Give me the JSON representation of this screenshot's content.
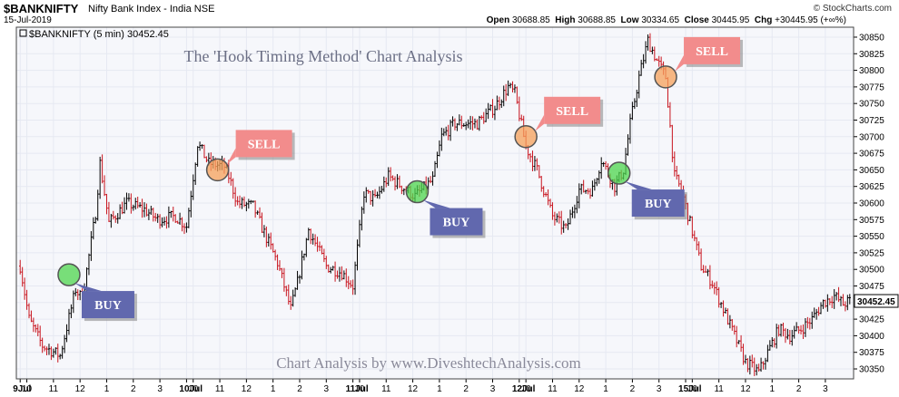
{
  "header": {
    "symbol": "$BANKNIFTY",
    "name": "Nifty Bank Index - India",
    "exchange": "NSE",
    "date": "15-Jul-2019",
    "brand": "© StockCharts.com",
    "open_label": "Open",
    "open": "30688.85",
    "high_label": "High",
    "high": "30688.85",
    "low_label": "Low",
    "low": "30334.65",
    "close_label": "Close",
    "close": "30445.95",
    "chg_label": "Chg",
    "chg": "+30445.95 (+∞%)"
  },
  "chart_data": {
    "type": "ohlc",
    "legend": "$BANKNIFTY (5 min) 30452.45",
    "title": "The 'Hook Timing Method' Chart Analysis",
    "watermark": "Chart Analysis by www.DiveshtechAnalysis.com",
    "ylim": [
      30335,
      30865
    ],
    "y_ticks": [
      30350,
      30375,
      30400,
      30425,
      30450,
      30475,
      30500,
      30525,
      30550,
      30575,
      30600,
      30625,
      30650,
      30675,
      30700,
      30725,
      30750,
      30775,
      30800,
      30825,
      30850
    ],
    "last_price": "30452.45",
    "x_ticks": [
      {
        "label": "9Jul",
        "bar": 0,
        "bold": true
      },
      {
        "label": "10",
        "bar": 3
      },
      {
        "label": "11",
        "bar": 15
      },
      {
        "label": "12",
        "bar": 27
      },
      {
        "label": "1",
        "bar": 39
      },
      {
        "label": "2",
        "bar": 51
      },
      {
        "label": "3",
        "bar": 63
      },
      {
        "label": "10Jul",
        "bar": 75,
        "bold": true
      },
      {
        "label": "10",
        "bar": 78
      },
      {
        "label": "11",
        "bar": 90
      },
      {
        "label": "12",
        "bar": 102
      },
      {
        "label": "1",
        "bar": 114
      },
      {
        "label": "2",
        "bar": 126
      },
      {
        "label": "3",
        "bar": 138
      },
      {
        "label": "11Jul",
        "bar": 150,
        "bold": true
      },
      {
        "label": "10",
        "bar": 153
      },
      {
        "label": "11",
        "bar": 165
      },
      {
        "label": "12",
        "bar": 177
      },
      {
        "label": "1",
        "bar": 189
      },
      {
        "label": "2",
        "bar": 201
      },
      {
        "label": "3",
        "bar": 213
      },
      {
        "label": "12Jul",
        "bar": 225,
        "bold": true
      },
      {
        "label": "10",
        "bar": 228
      },
      {
        "label": "11",
        "bar": 240
      },
      {
        "label": "12",
        "bar": 252
      },
      {
        "label": "1",
        "bar": 264
      },
      {
        "label": "2",
        "bar": 276
      },
      {
        "label": "3",
        "bar": 288
      },
      {
        "label": "15Jul",
        "bar": 300,
        "bold": true
      },
      {
        "label": "10",
        "bar": 303
      },
      {
        "label": "11",
        "bar": 315
      },
      {
        "label": "12",
        "bar": 327
      },
      {
        "label": "1",
        "bar": 339
      },
      {
        "label": "2",
        "bar": 351
      },
      {
        "label": "3",
        "bar": 363
      }
    ],
    "total_bars": 375,
    "close_anchors": [
      [
        0,
        30505
      ],
      [
        4,
        30425
      ],
      [
        10,
        30385
      ],
      [
        18,
        30370
      ],
      [
        25,
        30470
      ],
      [
        28,
        30455
      ],
      [
        34,
        30585
      ],
      [
        36,
        30660
      ],
      [
        40,
        30570
      ],
      [
        48,
        30600
      ],
      [
        56,
        30590
      ],
      [
        62,
        30575
      ],
      [
        70,
        30580
      ],
      [
        75,
        30565
      ],
      [
        80,
        30690
      ],
      [
        85,
        30660
      ],
      [
        92,
        30655
      ],
      [
        94,
        30640
      ],
      [
        98,
        30600
      ],
      [
        105,
        30595
      ],
      [
        110,
        30555
      ],
      [
        116,
        30510
      ],
      [
        122,
        30440
      ],
      [
        125,
        30480
      ],
      [
        130,
        30560
      ],
      [
        138,
        30505
      ],
      [
        145,
        30495
      ],
      [
        150,
        30475
      ],
      [
        155,
        30615
      ],
      [
        160,
        30605
      ],
      [
        166,
        30640
      ],
      [
        172,
        30625
      ],
      [
        178,
        30610
      ],
      [
        186,
        30635
      ],
      [
        190,
        30700
      ],
      [
        196,
        30720
      ],
      [
        206,
        30720
      ],
      [
        214,
        30745
      ],
      [
        220,
        30775
      ],
      [
        223,
        30765
      ],
      [
        228,
        30685
      ],
      [
        233,
        30650
      ],
      [
        240,
        30580
      ],
      [
        246,
        30560
      ],
      [
        252,
        30620
      ],
      [
        258,
        30620
      ],
      [
        262,
        30665
      ],
      [
        268,
        30625
      ],
      [
        272,
        30650
      ],
      [
        275,
        30720
      ],
      [
        279,
        30790
      ],
      [
        283,
        30845
      ],
      [
        287,
        30815
      ],
      [
        291,
        30790
      ],
      [
        295,
        30640
      ],
      [
        298,
        30620
      ],
      [
        302,
        30570
      ],
      [
        307,
        30505
      ],
      [
        312,
        30480
      ],
      [
        317,
        30440
      ],
      [
        322,
        30400
      ],
      [
        327,
        30360
      ],
      [
        333,
        30345
      ],
      [
        337,
        30375
      ],
      [
        342,
        30410
      ],
      [
        347,
        30400
      ],
      [
        352,
        30410
      ],
      [
        357,
        30425
      ],
      [
        362,
        30450
      ],
      [
        367,
        30460
      ],
      [
        371,
        30448
      ],
      [
        374,
        30452
      ]
    ],
    "annotations": [
      {
        "label": "BUY",
        "type": "buy",
        "bar": 22,
        "price": 30492
      },
      {
        "label": "SELL",
        "type": "sell",
        "bar": 89,
        "price": 30650
      },
      {
        "label": "BUY",
        "type": "buy",
        "bar": 179,
        "price": 30617
      },
      {
        "label": "SELL",
        "type": "sell",
        "bar": 228,
        "price": 30700
      },
      {
        "label": "BUY",
        "type": "buy",
        "bar": 270,
        "price": 30645
      },
      {
        "label": "SELL",
        "type": "sell",
        "bar": 291,
        "price": 30790
      }
    ],
    "colors": {
      "bg": "#f6f7fb",
      "grid": "#e6e9f2",
      "up": "#000000",
      "down": "#c8141e",
      "buy_circle": "#4ed64e",
      "sell_circle": "#f5a05a",
      "buy_box": "#6168ae",
      "sell_box": "#f28c8c",
      "title": "#6b6f85",
      "watermark": "#8a8a9a"
    }
  }
}
